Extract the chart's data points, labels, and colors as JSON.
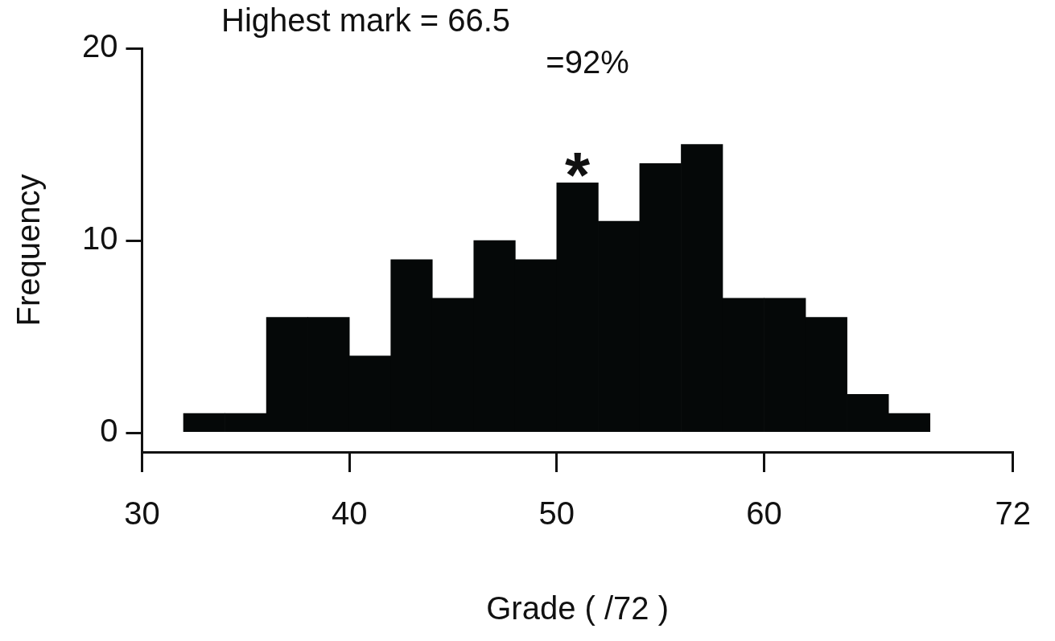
{
  "chart_data": {
    "type": "histogram",
    "xlabel": "Grade ( /72 )",
    "ylabel": "Frequency",
    "bins": [
      32,
      34,
      36,
      38,
      40,
      42,
      44,
      46,
      48,
      50,
      52,
      54,
      56,
      58,
      60,
      62,
      64,
      66,
      68
    ],
    "values": [
      1,
      1,
      6,
      6,
      4,
      9,
      7,
      10,
      9,
      13,
      11,
      14,
      15,
      7,
      7,
      6,
      2,
      1
    ],
    "color": "#050808",
    "xlim": [
      30,
      72
    ],
    "xticks": [
      30,
      40,
      50,
      60,
      72
    ],
    "ylim": [
      -1,
      20
    ],
    "yticks": [
      0,
      10,
      20
    ],
    "grid": false,
    "legend": false,
    "annotations": [
      "Highest mark = 66.5",
      "=92%",
      {
        "text": "*",
        "x": 51,
        "y": 13
      }
    ]
  }
}
